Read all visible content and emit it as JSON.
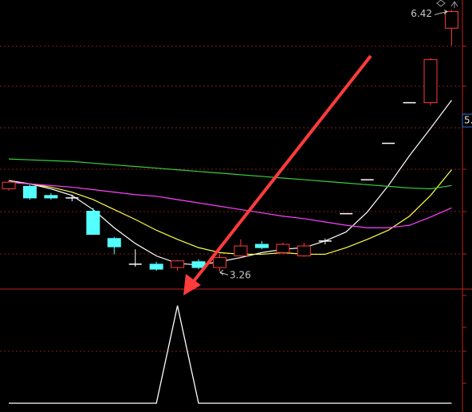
{
  "chart_data": [
    {
      "type": "candlestick",
      "open": [
        4.26,
        4.29,
        4.18,
        4.15,
        3.99,
        3.66,
        3.35,
        3.35,
        3.31,
        3.38,
        3.31,
        3.45,
        3.59,
        3.49,
        3.45,
        3.63,
        3.96,
        4.37,
        4.81,
        5.3,
        5.3,
        6.2
      ],
      "high": [
        4.36,
        4.31,
        4.21,
        4.19,
        4.03,
        3.68,
        3.53,
        3.38,
        3.4,
        3.41,
        3.47,
        3.65,
        3.63,
        3.61,
        3.61,
        3.66,
        3.96,
        4.37,
        4.81,
        5.3,
        5.84,
        6.42
      ],
      "low": [
        4.24,
        4.13,
        4.13,
        4.11,
        3.71,
        3.47,
        3.32,
        3.27,
        3.27,
        3.29,
        3.26,
        3.44,
        3.53,
        3.47,
        3.44,
        3.59,
        3.96,
        4.37,
        4.81,
        5.3,
        5.27,
        5.99
      ],
      "close": [
        4.34,
        4.15,
        4.15,
        4.15,
        3.71,
        3.56,
        3.35,
        3.29,
        3.39,
        3.31,
        3.43,
        3.57,
        3.55,
        3.59,
        3.57,
        3.63,
        3.96,
        4.37,
        4.81,
        5.3,
        5.82,
        6.4
      ],
      "up_color": "#ff3a3a",
      "down_color": "#54ffff",
      "flat_color": "#ffffff",
      "ylim": [
        3.05,
        6.54
      ],
      "moving_averages": [
        {
          "color": "#ffffff",
          "values": [
            4.36,
            4.32,
            4.26,
            4.18,
            4.01,
            3.79,
            3.6,
            3.45,
            3.36,
            3.34,
            3.38,
            3.43,
            3.49,
            3.53,
            3.55,
            3.63,
            3.74,
            3.98,
            4.3,
            4.66,
            4.99,
            5.33
          ]
        },
        {
          "color": "#ffff4a",
          "values": [
            4.34,
            4.32,
            4.28,
            4.22,
            4.13,
            4.01,
            3.89,
            3.76,
            3.65,
            3.55,
            3.49,
            3.47,
            3.47,
            3.49,
            3.47,
            3.47,
            3.55,
            3.65,
            3.76,
            3.93,
            4.18,
            4.49
          ]
        },
        {
          "color": "#ff40ff",
          "values": [
            4.34,
            4.32,
            4.3,
            4.28,
            4.25,
            4.22,
            4.19,
            4.17,
            4.13,
            4.09,
            4.05,
            4.01,
            3.97,
            3.93,
            3.9,
            3.86,
            3.82,
            3.79,
            3.79,
            3.82,
            3.92,
            4.03
          ]
        },
        {
          "color": "#3ccc3c",
          "values": [
            4.62,
            4.61,
            4.6,
            4.59,
            4.57,
            4.55,
            4.53,
            4.51,
            4.49,
            4.47,
            4.45,
            4.43,
            4.41,
            4.39,
            4.37,
            4.35,
            4.33,
            4.31,
            4.29,
            4.27,
            4.26,
            4.3
          ]
        }
      ],
      "annotations": [
        {
          "value": 6.42,
          "label": "6.42"
        },
        {
          "value": 3.26,
          "label": "3.26"
        }
      ],
      "price_tag": "5."
    },
    {
      "type": "line",
      "values": [
        0,
        0,
        0,
        0,
        0,
        0,
        0,
        0,
        1,
        0,
        0,
        0,
        0,
        0,
        0,
        0,
        0,
        0,
        0,
        0,
        0,
        0
      ],
      "color": "#ffffff",
      "ylim": [
        0,
        1.17
      ]
    }
  ]
}
